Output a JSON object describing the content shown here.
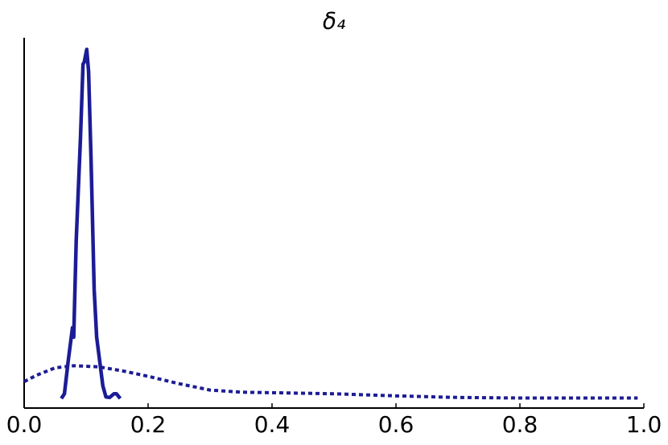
{
  "chart_data": {
    "type": "line",
    "title": "δ₄",
    "series": [
      {
        "color": "#1c1c96",
        "line_style": "solid",
        "x": [
          0.06,
          0.065,
          0.071,
          0.078,
          0.08,
          0.084,
          0.091,
          0.095,
          0.097,
          0.101,
          0.104,
          0.108,
          0.113,
          0.117,
          0.122,
          0.127,
          0.132,
          0.138,
          0.145,
          0.149,
          0.155
        ],
        "values": [
          0.0,
          0.45,
          3.5,
          6.7,
          5.8,
          14.9,
          24.8,
          31.6,
          31.8,
          33,
          30.9,
          22.5,
          10.3,
          5.8,
          3.5,
          1.2,
          0.15,
          0.1,
          0.45,
          0.45,
          0.0
        ]
      },
      {
        "color": "#1c1c96",
        "line_style": "dotted",
        "x": [
          0,
          0.02,
          0.05,
          0.08,
          0.12,
          0.16,
          0.2,
          0.25,
          0.3,
          0.35,
          0.4,
          0.5,
          0.6,
          0.7,
          0.8,
          0.9,
          0.99
        ],
        "values": [
          1.6,
          2.2,
          2.9,
          3.1,
          3.0,
          2.6,
          2.1,
          1.4,
          0.8,
          0.6,
          0.55,
          0.45,
          0.25,
          0.1,
          0.05,
          0.05,
          0.05
        ]
      }
    ],
    "xlim": [
      0,
      1
    ],
    "ylim": [
      -0.9,
      34.1
    ],
    "xticks": [
      {
        "value": 0,
        "label": "0.0"
      },
      0.2,
      0.4,
      0.6,
      0.8,
      {
        "value": 1,
        "label": "1.0"
      }
    ],
    "grid": false
  }
}
